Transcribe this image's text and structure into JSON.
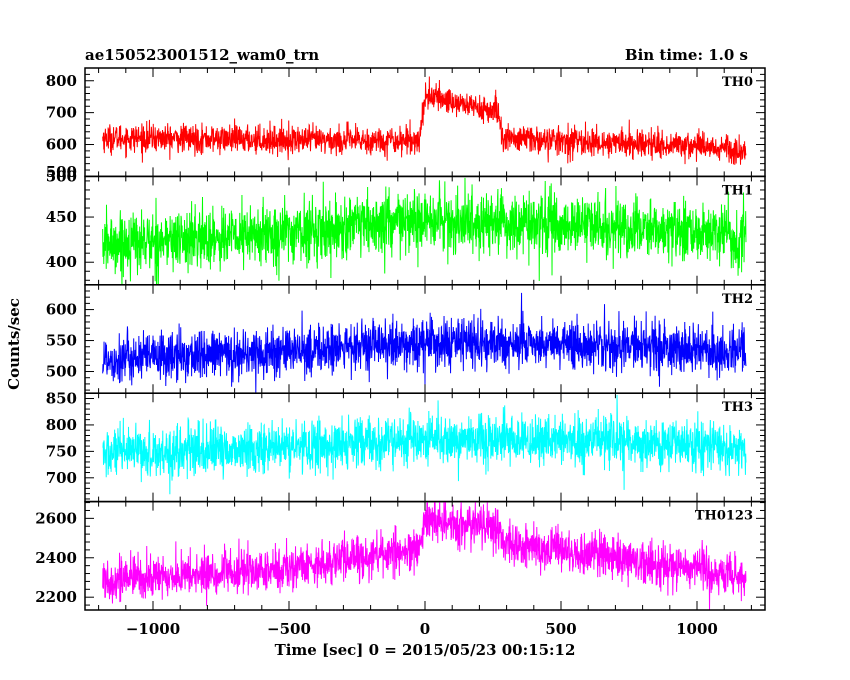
{
  "header": {
    "title": "ae150523001512_wam0_trn",
    "bin_time": "Bin time: 1.0 s"
  },
  "chart_data": {
    "type": "line",
    "title": "ae150523001512_wam0_trn",
    "xlabel": "Time [sec] 0 = 2015/05/23 00:15:12",
    "ylabel": "Counts/sec",
    "xlim": [
      -1250,
      1250
    ],
    "x_ticks": [
      -1000,
      -500,
      0,
      500,
      1000
    ],
    "x_tick_labels": [
      "−1000",
      "−500",
      "0",
      "500",
      "1000"
    ],
    "x_range": [
      -1185,
      1180
    ],
    "panels": [
      {
        "name": "TH0",
        "color": "#ff0000",
        "ylim": [
          500,
          840
        ],
        "y_ticks": [
          500,
          600,
          700,
          800
        ],
        "y_tick_labels": [
          "500",
          "600",
          "700",
          "800"
        ],
        "trend": [
          [
            -1185,
            620
          ],
          [
            -1000,
            620
          ],
          [
            -600,
            615
          ],
          [
            -200,
            612
          ],
          [
            -20,
            615
          ],
          [
            0,
            755
          ],
          [
            150,
            725
          ],
          [
            270,
            700
          ],
          [
            285,
            620
          ],
          [
            600,
            607
          ],
          [
            1000,
            598
          ],
          [
            1180,
            583
          ]
        ],
        "noise_sd": 22
      },
      {
        "name": "TH1",
        "color": "#00ff00",
        "ylim": [
          375,
          495
        ],
        "y_ticks": [
          400,
          450,
          500
        ],
        "y_tick_labels": [
          "400",
          "450",
          "500"
        ],
        "trend": [
          [
            -1185,
            420
          ],
          [
            -600,
            430
          ],
          [
            0,
            445
          ],
          [
            600,
            440
          ],
          [
            1180,
            430
          ]
        ],
        "noise_sd": 17
      },
      {
        "name": "TH2",
        "color": "#0000ff",
        "ylim": [
          465,
          640
        ],
        "y_ticks": [
          500,
          550,
          600
        ],
        "y_tick_labels": [
          "500",
          "550",
          "600"
        ],
        "trend": [
          [
            -1185,
            520
          ],
          [
            -600,
            530
          ],
          [
            0,
            545
          ],
          [
            600,
            545
          ],
          [
            1180,
            530
          ]
        ],
        "noise_sd": 20
      },
      {
        "name": "TH3",
        "color": "#00ffff",
        "ylim": [
          655,
          860
        ],
        "y_ticks": [
          700,
          750,
          800,
          850
        ],
        "y_tick_labels": [
          "700",
          "750",
          "800",
          "850"
        ],
        "trend": [
          [
            -1185,
            745
          ],
          [
            -600,
            755
          ],
          [
            0,
            770
          ],
          [
            600,
            770
          ],
          [
            1180,
            755
          ]
        ],
        "noise_sd": 24
      },
      {
        "name": "TH0123",
        "color": "#ff00ff",
        "ylim": [
          2135,
          2685
        ],
        "y_ticks": [
          2200,
          2400,
          2600
        ],
        "y_tick_labels": [
          "2200",
          "2400",
          "2600"
        ],
        "trend": [
          [
            -1185,
            2290
          ],
          [
            -1000,
            2300
          ],
          [
            -600,
            2330
          ],
          [
            -200,
            2410
          ],
          [
            -20,
            2440
          ],
          [
            0,
            2580
          ],
          [
            150,
            2565
          ],
          [
            270,
            2560
          ],
          [
            285,
            2470
          ],
          [
            600,
            2420
          ],
          [
            1000,
            2350
          ],
          [
            1180,
            2280
          ]
        ],
        "noise_sd": 55
      }
    ],
    "grid": false,
    "legend": "none"
  }
}
